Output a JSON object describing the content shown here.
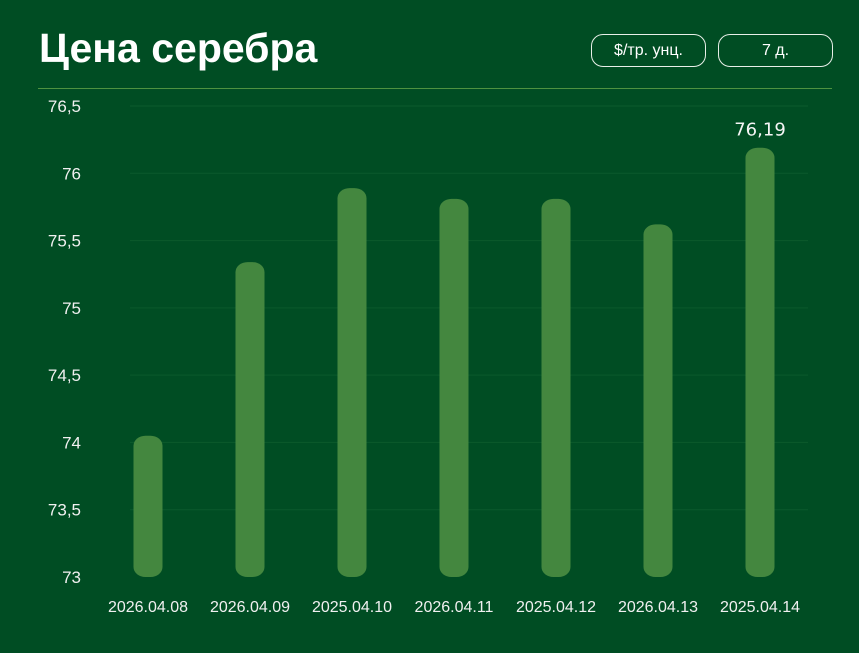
{
  "header": {
    "title": "Цена серебра",
    "unit_button": "$/тр. унц.",
    "period_button": "7 д."
  },
  "colors": {
    "background": "#004d23",
    "bar": "#44873f",
    "divider": "#4f9240",
    "grid": "#0b5a2c"
  },
  "chart_data": {
    "type": "bar",
    "categories": [
      "2026.04.08",
      "2026.04.09",
      "2025.04.10",
      "2026.04.11",
      "2025.04.12",
      "2026.04.13",
      "2025.04.14"
    ],
    "values": [
      74.05,
      75.34,
      75.89,
      75.81,
      75.81,
      75.62,
      76.19
    ],
    "ylim": [
      73,
      76.5
    ],
    "yticks": [
      73,
      73.5,
      74,
      74.5,
      75,
      75.5,
      76,
      76.5
    ],
    "ytick_labels": [
      "73",
      "73,5",
      "74",
      "74,5",
      "75",
      "75,5",
      "76",
      "76,5"
    ],
    "annotations": [
      {
        "index": 6,
        "label": "76,19"
      }
    ],
    "grid": true,
    "legend": "none"
  }
}
